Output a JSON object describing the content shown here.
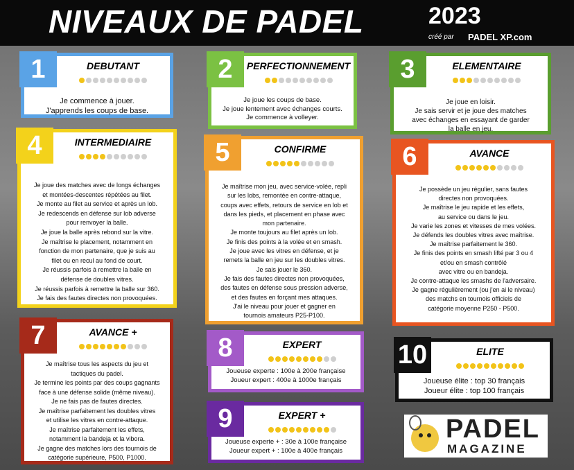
{
  "header": {
    "title": "NIVEAUX DE PADEL",
    "year": "2023",
    "credit": "créé par",
    "brand": "PADEL XP.com"
  },
  "rating_scale": 10,
  "cards": [
    {
      "number": 1,
      "title": "DEBUTANT",
      "balls": 1,
      "lines": [
        "Je commence à jouer.",
        "J'apprends les coups de base."
      ]
    },
    {
      "number": 2,
      "title": "PERFECTIONNEMENT",
      "balls": 2,
      "lines": [
        "Je joue les coups de base.",
        "Je joue lentement avec échanges courts.",
        "Je commence à volleyer."
      ]
    },
    {
      "number": 3,
      "title": "ELEMENTAIRE",
      "balls": 3,
      "lines": [
        "Je joue en loisir.",
        "Je sais servir et je joue des matches",
        "avec échanges en essayant de garder",
        "la balle en jeu."
      ]
    },
    {
      "number": 4,
      "title": "INTERMEDIAIRE",
      "balls": 4,
      "lines": [
        "Je joue des matches avec de longs échanges",
        "et montées-descentes répétées au filet.",
        "Je monte au filet au service et après un lob.",
        "Je redescends en défense sur lob adverse",
        "pour renvoyer la balle.",
        "Je joue la balle après rebond sur la vitre.",
        "Je maîtrise le placement, notamment en",
        "fonction de mon partenaire, que je suis au",
        "filet ou en recul au fond de court.",
        "Je réussis parfois à remettre la balle en",
        "défense de doubles vitres.",
        "Je réussis parfois à remettre la balle sur 360.",
        "Je fais des fautes directes non provoquées."
      ]
    },
    {
      "number": 5,
      "title": "CONFIRME",
      "balls": 5,
      "lines": [
        "Je maîtrise mon jeu, avec service-volée, repli",
        "sur les lobs, remontée en contre-attaque,",
        "coups avec effets, retours de service en lob et",
        "dans les pieds, et placement en phase avec",
        "mon partenaire.",
        "Je monte toujours au filet après un lob.",
        "Je finis des points à la volée et en smash.",
        "Je joue avec les vitres en défense, et je",
        "remets la balle en jeu sur les doubles vitres.",
        "Je sais jouer le 360.",
        "Je fais des fautes directes non provoquées,",
        "des fautes en défense sous pression adverse,",
        "et des fautes en forçant mes attaques.",
        "J'ai le niveau pour jouer et gagner en",
        "tournois amateurs P25-P100."
      ]
    },
    {
      "number": 6,
      "title": "AVANCE",
      "balls": 6,
      "lines": [
        "Je possède un jeu régulier, sans fautes",
        "directes non provoquées.",
        "Je maîtrise le jeu rapide et les effets,",
        "au service ou dans le jeu.",
        "Je varie les zones et vitesses de mes volées.",
        "Je défends les doubles vitres avec maîtrise.",
        "Je maîtrise parfaitement le 360.",
        "Je finis des points en smash lifté par 3 ou 4",
        "et/ou en smash contrôlé",
        "avec vitre ou en bandeja.",
        "Je contre-attaque les smashs de l'adversaire.",
        "Je gagne régulièrement (ou j'en ai le niveau)",
        "des matchs en tournois officiels de",
        "catégorie moyenne P250 - P500."
      ]
    },
    {
      "number": 7,
      "title": "AVANCE +",
      "balls": 7,
      "lines": [
        "Je maîtrise tous les aspects du jeu et",
        "tactiques du padel.",
        "Je termine les points par des coups gagnants",
        "face à une défense solide (même niveau).",
        "Je ne fais pas de fautes directes.",
        "Je maîtrise parfaitement les doubles vitres",
        "et utilise les vitres en contre-attaque.",
        "Je maîtrise parfaitement les effets,",
        "notamment la bandeja et la vibora.",
        "Je gagne des matches lors des tournois de",
        "catégorie supérieure, P500, P1000."
      ]
    },
    {
      "number": 8,
      "title": "EXPERT",
      "balls": 8,
      "lines": [
        "Joueuse experte : 100e à 200e française",
        "Joueur expert : 400e à 1000e français"
      ]
    },
    {
      "number": 9,
      "title": "EXPERT +",
      "balls": 9,
      "lines": [
        "Joueuse experte + : 30e à 100e française",
        "Joueur expert + : 100e à 400e français"
      ]
    },
    {
      "number": 10,
      "title": "ELITE",
      "balls": 10,
      "lines": [
        "Joueuse élite : top 30 français",
        "Joueur élite : top 100 français"
      ]
    }
  ],
  "logo": {
    "name": "PADEL",
    "sub": "MAGAZINE"
  }
}
